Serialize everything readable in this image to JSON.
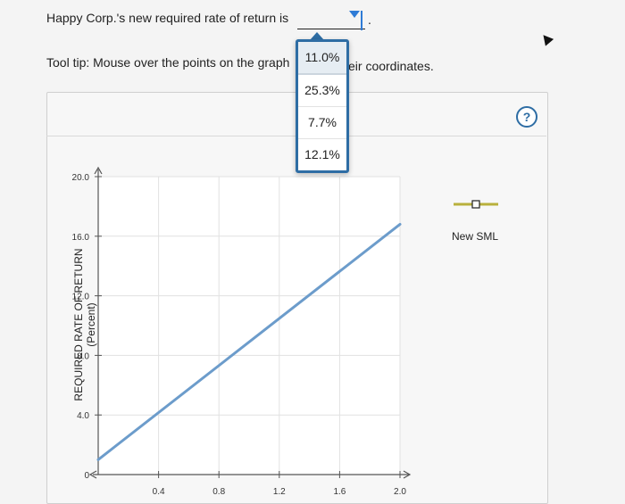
{
  "question": {
    "text": "Happy Corp.'s new required rate of return is",
    "period": "."
  },
  "tooltip": {
    "prefix": "Tool tip: Mouse over the points on the graph",
    "suffix": "eir coordinates."
  },
  "dropdown": {
    "selected": "11.0%",
    "options": [
      "11.0%",
      "25.3%",
      "7.7%",
      "12.1%"
    ]
  },
  "help": {
    "label": "?"
  },
  "colors": {
    "accent": "#2e7bd6",
    "line": "#6c9ccb"
  },
  "chart_data": {
    "type": "line",
    "ylabel": "REQUIRED RATE OF RETURN (Percent)",
    "y_ticks": [
      "0",
      "4.0",
      "8.0",
      "12.0",
      "16.0",
      "20.0"
    ],
    "x_ticks": [
      "0.4",
      "0.8",
      "1.2",
      "1.6",
      "2.0"
    ],
    "ylim": [
      0,
      20
    ],
    "xlim": [
      0,
      2.0
    ],
    "grid": true,
    "legend_placement": "right",
    "series": [
      {
        "name": "New SML",
        "x": [
          0,
          2.0
        ],
        "y": [
          1.0,
          16.8
        ]
      }
    ]
  }
}
